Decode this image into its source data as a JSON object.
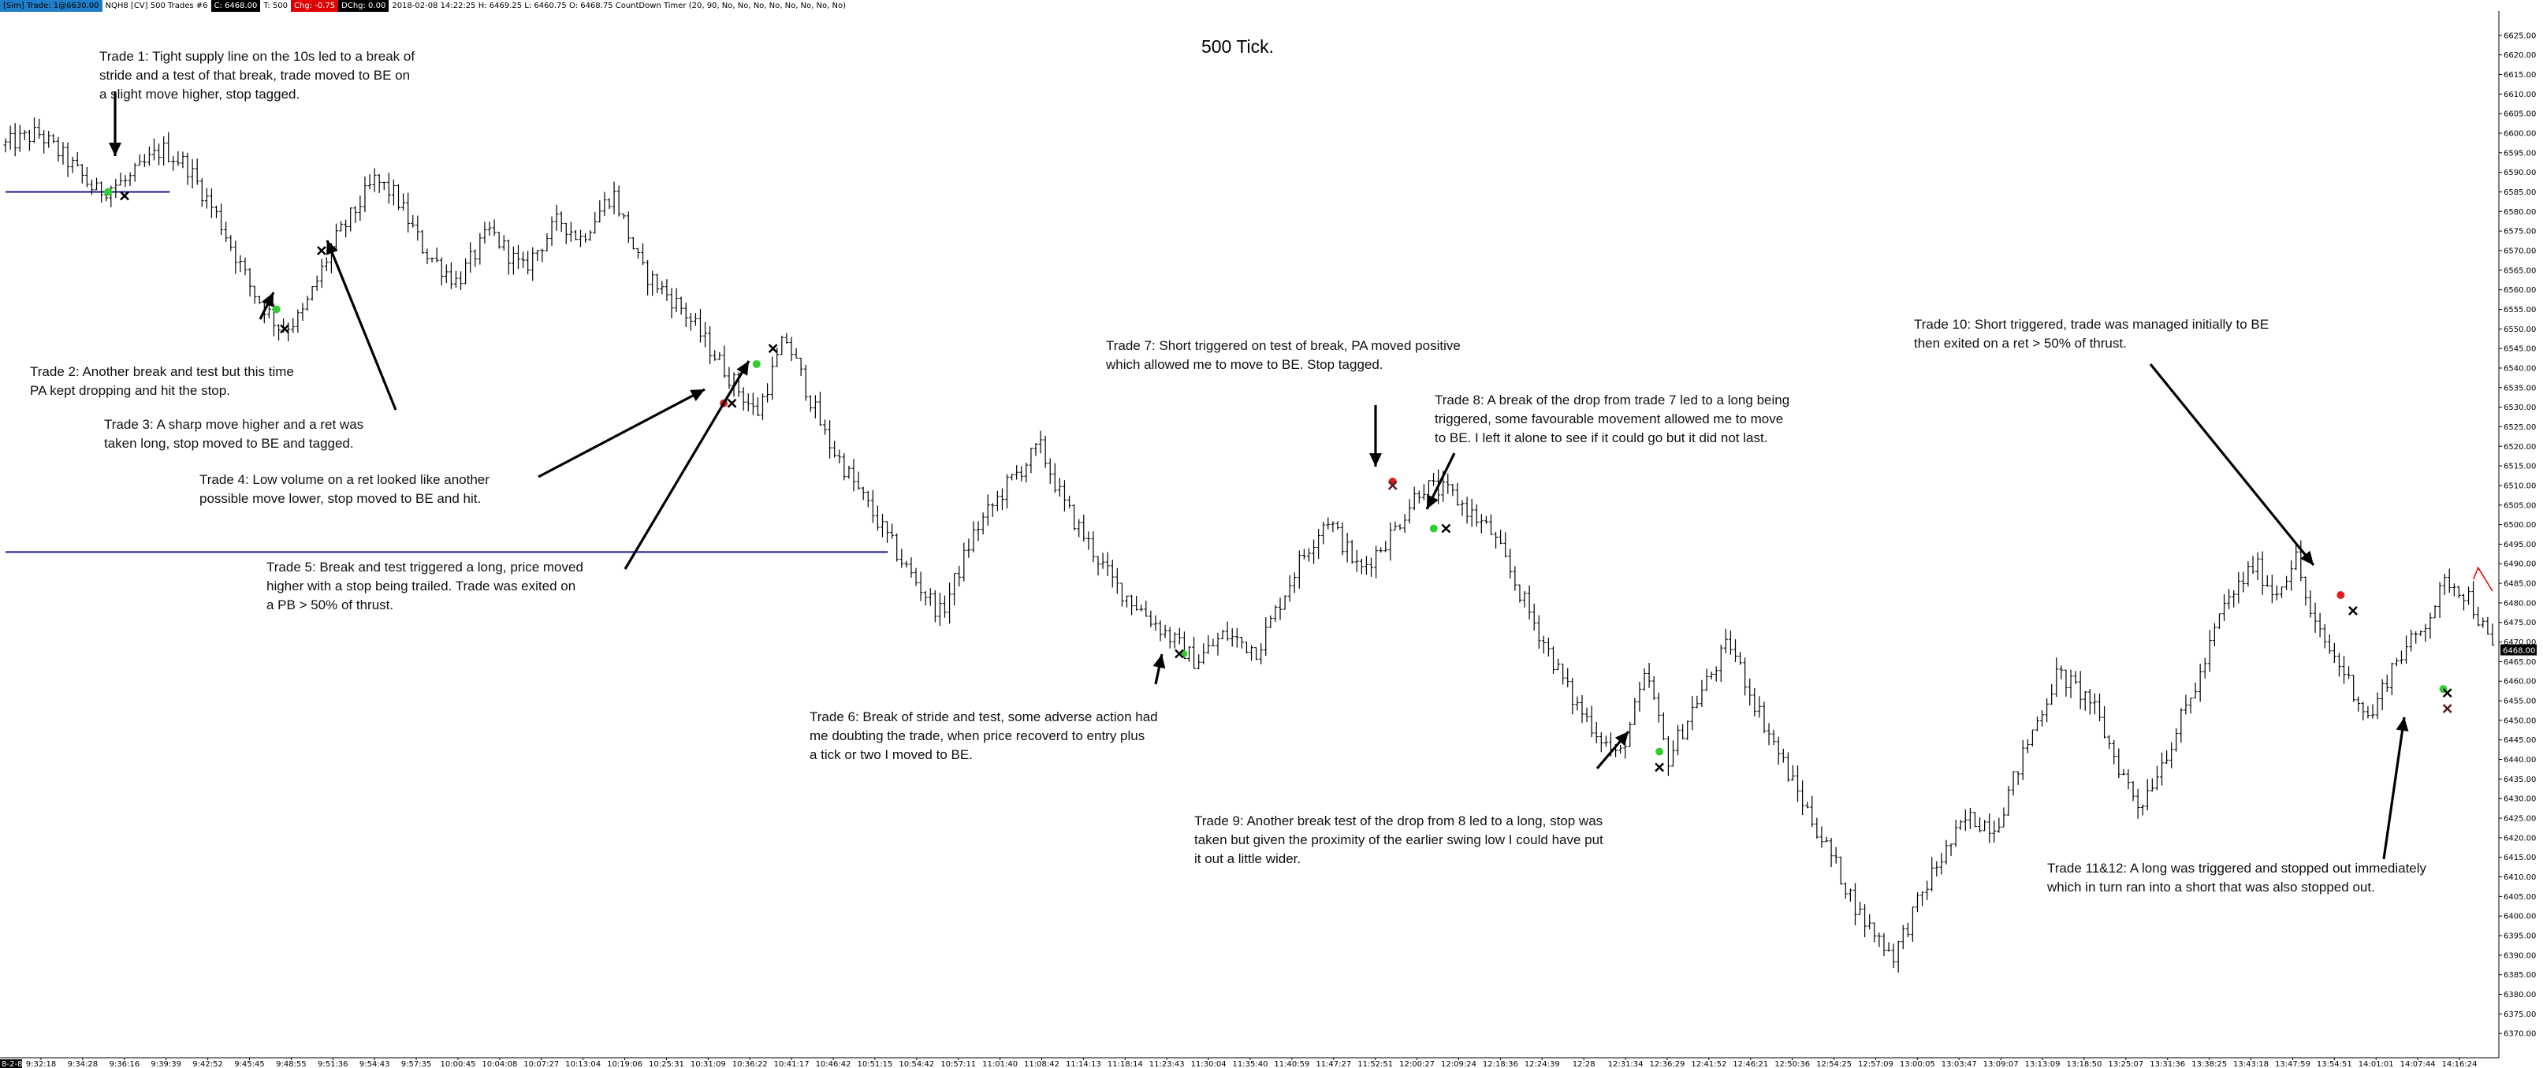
{
  "header": {
    "items": [
      {
        "text": "[Sim] Trade: 1@6630.00",
        "style": "blue"
      },
      {
        "text": "NQH8 [CV] 500 Trades #6",
        "style": "plain"
      },
      {
        "text": "C: 6468.00",
        "style": "black"
      },
      {
        "text": "T: 500",
        "style": "plain"
      },
      {
        "text": "Chg: -0.75",
        "style": "red"
      },
      {
        "text": "DChg: 0.00",
        "style": "black"
      },
      {
        "text": "2018-02-08 14:22:25 H: 6469.25 L: 6460.75 O: 6468.75 CountDown Timer  (20, 90, No, No, No, No, No, No, No, No)",
        "style": "plain"
      }
    ]
  },
  "chart_data": {
    "type": "ohlc",
    "title": "500 Tick.",
    "ylim": [
      6365,
      6630
    ],
    "y_ticks": [
      6370,
      6375,
      6380,
      6385,
      6390,
      6395,
      6400,
      6405,
      6410,
      6415,
      6420,
      6425,
      6430,
      6435,
      6440,
      6445,
      6450,
      6455,
      6460,
      6465,
      6470,
      6475,
      6480,
      6485,
      6490,
      6495,
      6500,
      6505,
      6510,
      6515,
      6520,
      6525,
      6530,
      6535,
      6540,
      6545,
      6550,
      6555,
      6560,
      6565,
      6570,
      6575,
      6580,
      6585,
      6590,
      6595,
      6600,
      6605,
      6610,
      6615,
      6620,
      6625
    ],
    "current_price_label": "6468.00",
    "bar_count": 520,
    "x_ticks": [
      "9:32:18",
      "9:34:28",
      "9:36:16",
      "9:39:39",
      "9:42:52",
      "9:45:45",
      "9:48:55",
      "9:51:36",
      "9:54:43",
      "9:57:35",
      "10:00:45",
      "10:04:08",
      "10:07:27",
      "10:13:04",
      "10:19:06",
      "10:25:31",
      "10:31:09",
      "10:36:22",
      "10:41:17",
      "10:46:42",
      "10:51:15",
      "10:54:42",
      "10:57:11",
      "11:01:40",
      "11:08:42",
      "11:14:13",
      "11:18:14",
      "11:23:43",
      "11:30:04",
      "11:35:40",
      "11:40:59",
      "11:47:27",
      "11:52:51",
      "12:00:27",
      "12:09:24",
      "12:18:36",
      "12:24:39",
      "12:28",
      "12:31:34",
      "12:36:29",
      "12:41:52",
      "12:46:21",
      "12:50:36",
      "12:54:25",
      "12:57:09",
      "13:00:05",
      "13:03:47",
      "13:09:07",
      "13:13:09",
      "13:18:50",
      "13:25:07",
      "13:31:36",
      "13:38:25",
      "13:43:18",
      "13:47:59",
      "13:54:51",
      "14:01:01",
      "14:07:44",
      "14:16:24"
    ],
    "x_start_label": "8-2-8",
    "price_path": [
      [
        0,
        6597
      ],
      [
        8,
        6600
      ],
      [
        15,
        6593
      ],
      [
        22,
        6585
      ],
      [
        30,
        6588
      ],
      [
        38,
        6596
      ],
      [
        44,
        6592
      ],
      [
        52,
        6578
      ],
      [
        60,
        6560
      ],
      [
        67,
        6550
      ],
      [
        72,
        6553
      ],
      [
        80,
        6572
      ],
      [
        90,
        6588
      ],
      [
        95,
        6584
      ],
      [
        102,
        6570
      ],
      [
        110,
        6562
      ],
      [
        118,
        6575
      ],
      [
        126,
        6565
      ],
      [
        135,
        6578
      ],
      [
        140,
        6573
      ],
      [
        148,
        6585
      ],
      [
        155,
        6565
      ],
      [
        165,
        6555
      ],
      [
        175,
        6540
      ],
      [
        183,
        6528
      ],
      [
        190,
        6548
      ],
      [
        200,
        6522
      ],
      [
        210,
        6505
      ],
      [
        220,
        6488
      ],
      [
        228,
        6477
      ],
      [
        236,
        6498
      ],
      [
        244,
        6510
      ],
      [
        252,
        6520
      ],
      [
        258,
        6505
      ],
      [
        270,
        6485
      ],
      [
        280,
        6475
      ],
      [
        290,
        6465
      ],
      [
        297,
        6472
      ],
      [
        305,
        6468
      ],
      [
        315,
        6490
      ],
      [
        322,
        6502
      ],
      [
        330,
        6488
      ],
      [
        338,
        6498
      ],
      [
        345,
        6510
      ],
      [
        352,
        6508
      ],
      [
        362,
        6498
      ],
      [
        372,
        6476
      ],
      [
        382,
        6455
      ],
      [
        393,
        6440
      ],
      [
        400,
        6462
      ],
      [
        405,
        6440
      ],
      [
        412,
        6455
      ],
      [
        420,
        6470
      ],
      [
        426,
        6455
      ],
      [
        435,
        6435
      ],
      [
        445,
        6415
      ],
      [
        452,
        6400
      ],
      [
        460,
        6390
      ],
      [
        470,
        6412
      ],
      [
        478,
        6425
      ],
      [
        485,
        6423
      ],
      [
        493,
        6445
      ],
      [
        500,
        6462
      ],
      [
        508,
        6455
      ],
      [
        515,
        6438
      ],
      [
        520,
        6428
      ],
      [
        528,
        6445
      ],
      [
        535,
        6462
      ],
      [
        540,
        6478
      ],
      [
        548,
        6490
      ],
      [
        553,
        6482
      ],
      [
        558,
        6492
      ],
      [
        562,
        6475
      ],
      [
        570,
        6462
      ],
      [
        576,
        6450
      ],
      [
        582,
        6465
      ],
      [
        588,
        6472
      ],
      [
        595,
        6486
      ],
      [
        600,
        6482
      ],
      [
        606,
        6468
      ]
    ],
    "horizontal_lines": [
      {
        "price": 6585,
        "from_bar": 0,
        "to_bar": 40,
        "color": "#1a1a8c"
      },
      {
        "price": 6493,
        "from_bar": 0,
        "to_bar": 215,
        "color": "#1a1a8c"
      }
    ],
    "entry_markers": [
      {
        "bar": 25,
        "price": 6585,
        "color": "#33cc33"
      },
      {
        "bar": 66,
        "price": 6555,
        "color": "#33cc33"
      },
      {
        "bar": 175,
        "price": 6531,
        "color": "#e02020"
      },
      {
        "bar": 183,
        "price": 6541,
        "color": "#33cc33"
      },
      {
        "bar": 287,
        "price": 6467,
        "color": "#33cc33"
      },
      {
        "bar": 338,
        "price": 6511,
        "color": "#e02020"
      },
      {
        "bar": 348,
        "price": 6499,
        "color": "#33cc33"
      },
      {
        "bar": 403,
        "price": 6442,
        "color": "#33cc33"
      },
      {
        "bar": 569,
        "price": 6482,
        "color": "#e02020"
      },
      {
        "bar": 594,
        "price": 6458,
        "color": "#33cc33"
      }
    ],
    "exit_markers": [
      {
        "bar": 29,
        "price": 6584,
        "color": "#000000"
      },
      {
        "bar": 68,
        "price": 6550,
        "color": "#000000"
      },
      {
        "bar": 77,
        "price": 6570,
        "color": "#000000"
      },
      {
        "bar": 177,
        "price": 6531,
        "color": "#000000"
      },
      {
        "bar": 187,
        "price": 6545,
        "color": "#000000"
      },
      {
        "bar": 286,
        "price": 6467,
        "color": "#000000"
      },
      {
        "bar": 338,
        "price": 6510,
        "color": "#5a1a1a"
      },
      {
        "bar": 351,
        "price": 6499,
        "color": "#000000"
      },
      {
        "bar": 403,
        "price": 6438,
        "color": "#000000"
      },
      {
        "bar": 572,
        "price": 6478,
        "color": "#000000"
      },
      {
        "bar": 595,
        "price": 6457,
        "color": "#000000"
      },
      {
        "bar": 595,
        "price": 6453,
        "color": "#5a1a1a"
      }
    ]
  },
  "annotations": [
    {
      "id": "trade-1",
      "text": "Trade 1:  Tight supply line on the 10s led to a break of\nstride and a test of that break, trade moved to BE on\na slight move higher, stop tagged."
    },
    {
      "id": "trade-2",
      "text": "Trade 2:  Another break and test but this time\nPA kept dropping and hit the stop."
    },
    {
      "id": "trade-3",
      "text": "Trade 3:  A sharp move higher and a ret was\ntaken long, stop moved to BE and tagged."
    },
    {
      "id": "trade-4",
      "text": "Trade 4:  Low volume on a ret looked like another\npossible move lower, stop moved to BE and hit."
    },
    {
      "id": "trade-5",
      "text": "Trade 5:  Break and test triggered a long, price moved\nhigher with a stop being trailed.  Trade was exited on\na PB > 50% of thrust."
    },
    {
      "id": "trade-6",
      "text": "Trade 6:  Break of stride and test, some adverse action had\nme doubting the trade, when price recoverd to entry plus\na tick or two I moved to BE."
    },
    {
      "id": "trade-7",
      "text": "Trade 7:  Short triggered on test of break, PA moved positive\nwhich allowed me to move to BE.  Stop tagged."
    },
    {
      "id": "trade-8",
      "text": "Trade 8:  A break of the drop from trade 7 led to a long being\ntriggered, some favourable movement allowed me to move\nto BE.  I left it alone to see if it could go but it did not last."
    },
    {
      "id": "trade-9",
      "text": "Trade 9:  Another break test of the drop from 8 led to a long, stop was\ntaken but given the proximity of the earlier swing low I could have put\nit out a little wider."
    },
    {
      "id": "trade-10",
      "text": "Trade 10:  Short triggered, trade was managed initially to BE\nthen exited on a ret > 50% of thrust."
    },
    {
      "id": "trade-11-12",
      "text": "Trade 11&12:  A long was triggered and stopped out immediately\nwhich in turn ran into a short that was also stopped out."
    }
  ]
}
